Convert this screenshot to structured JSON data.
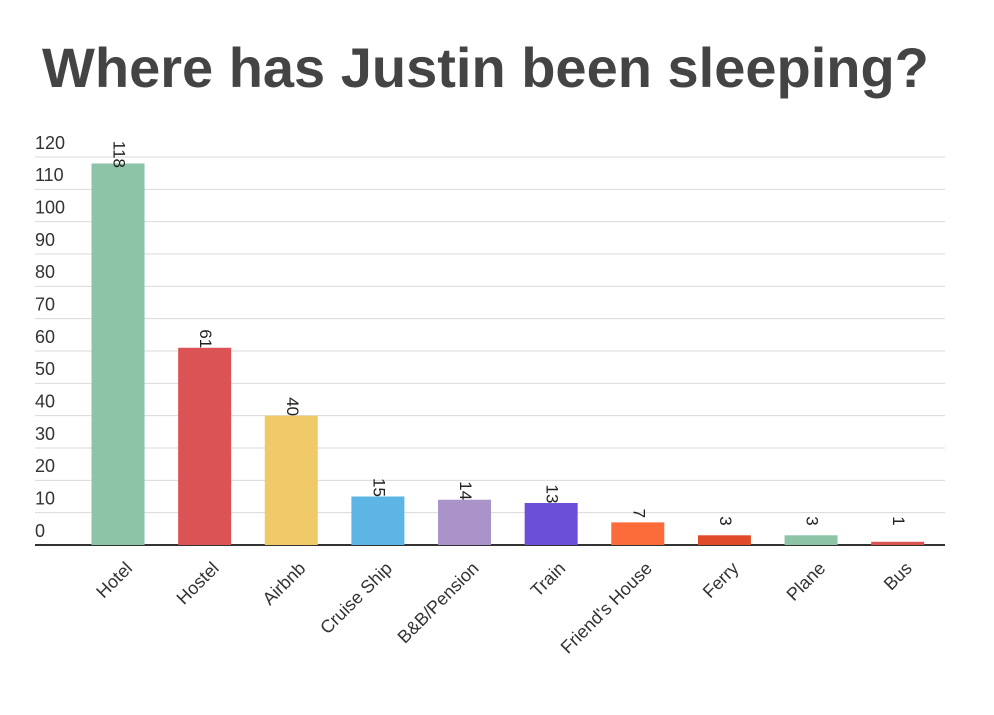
{
  "chart_data": {
    "type": "bar",
    "title": "Where has Justin been sleeping?",
    "categories": [
      "Hotel",
      "Hostel",
      "Airbnb",
      "Cruise Ship",
      "B&B/Pension",
      "Train",
      "Friend's House",
      "Ferry",
      "Plane",
      "Bus"
    ],
    "values": [
      118,
      61,
      40,
      15,
      14,
      13,
      7,
      3,
      3,
      1
    ],
    "colors": [
      "#8dc3a7",
      "#dc5356",
      "#f0ca69",
      "#5db5e5",
      "#a993c9",
      "#6b4fd8",
      "#fc6c3b",
      "#e04a26",
      "#8dc3a7",
      "#d9534f"
    ],
    "ylim": [
      0,
      120
    ],
    "yticks": [
      0,
      10,
      20,
      30,
      40,
      50,
      60,
      70,
      80,
      90,
      100,
      110,
      120
    ],
    "grid": true
  }
}
